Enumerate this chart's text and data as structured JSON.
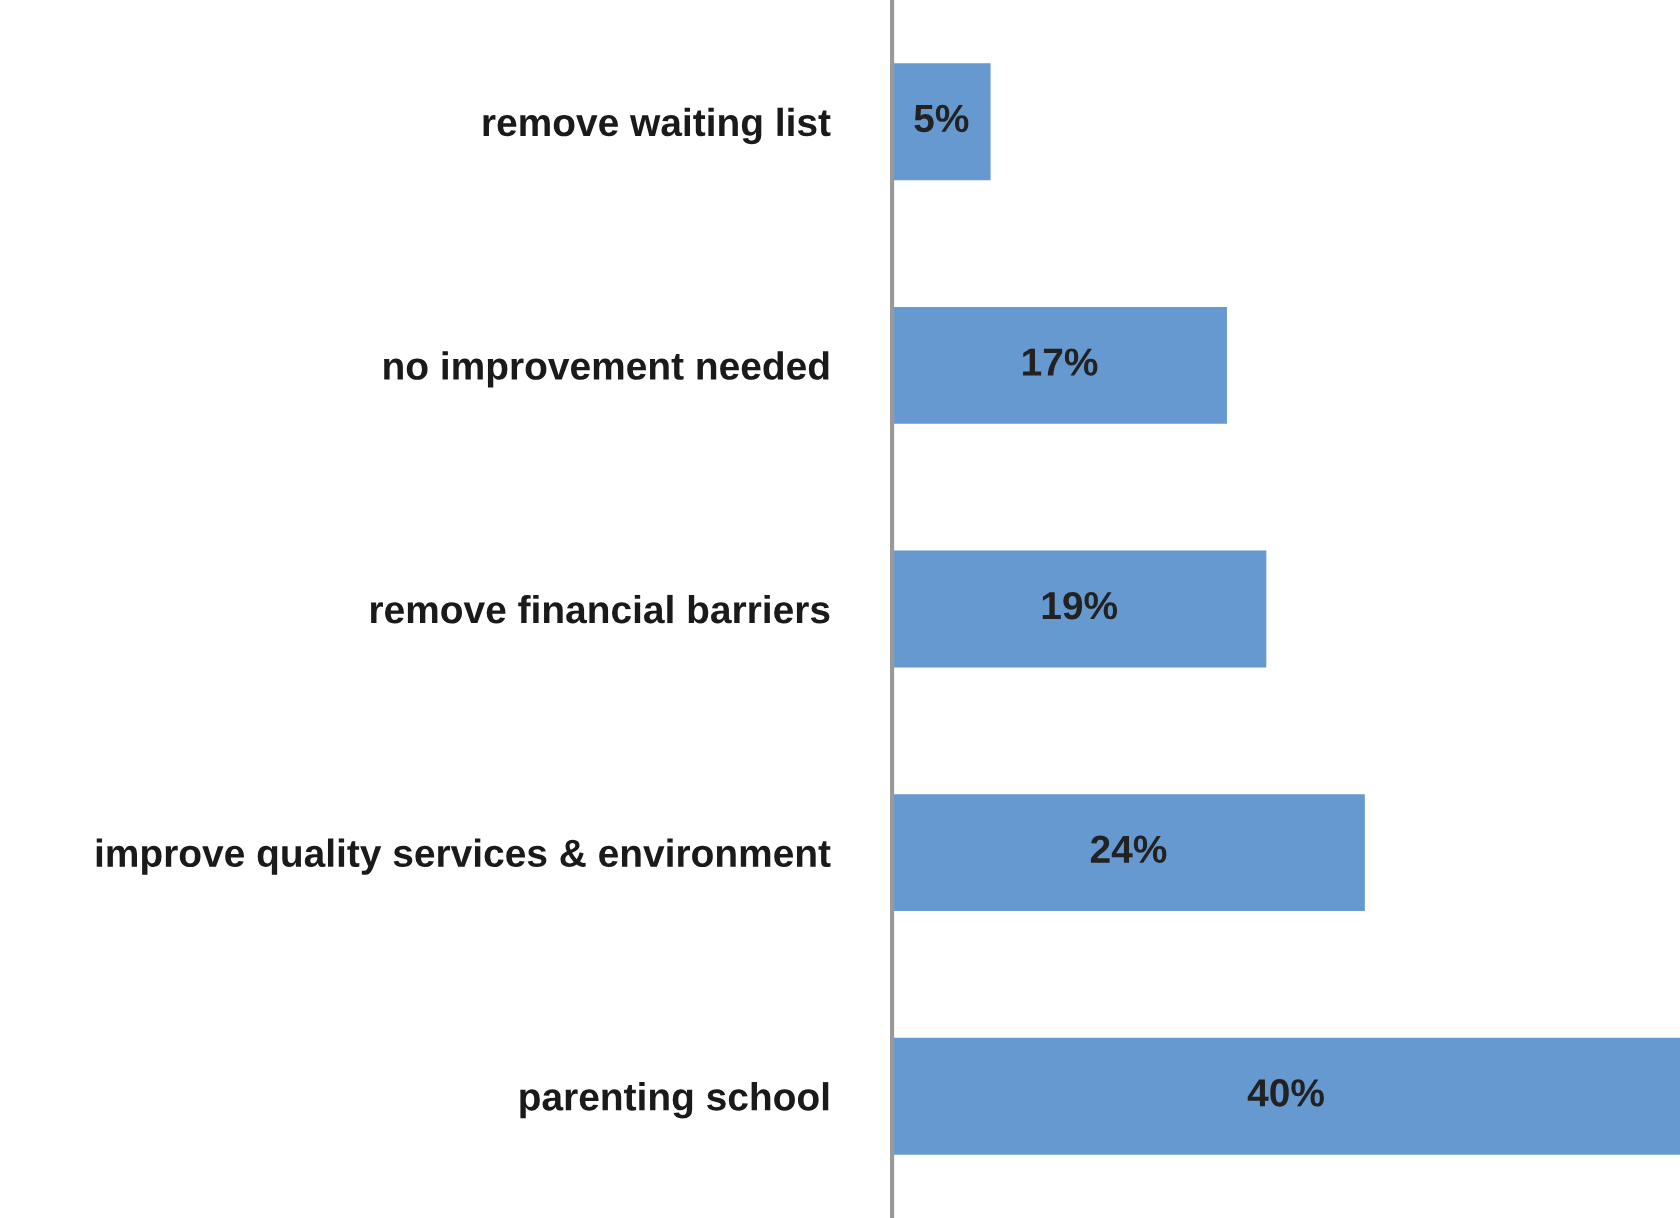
{
  "chart_data": {
    "type": "bar",
    "orientation": "horizontal",
    "categories": [
      "remove waiting list",
      "no improvement needed",
      "remove financial barriers",
      "improve quality services & environment",
      "parenting school"
    ],
    "values": [
      5,
      17,
      19,
      24,
      40
    ],
    "value_labels": [
      "5%",
      "17%",
      "19%",
      "24%",
      "40%"
    ],
    "color": "#6699d0",
    "grid": false,
    "legend": false
  }
}
